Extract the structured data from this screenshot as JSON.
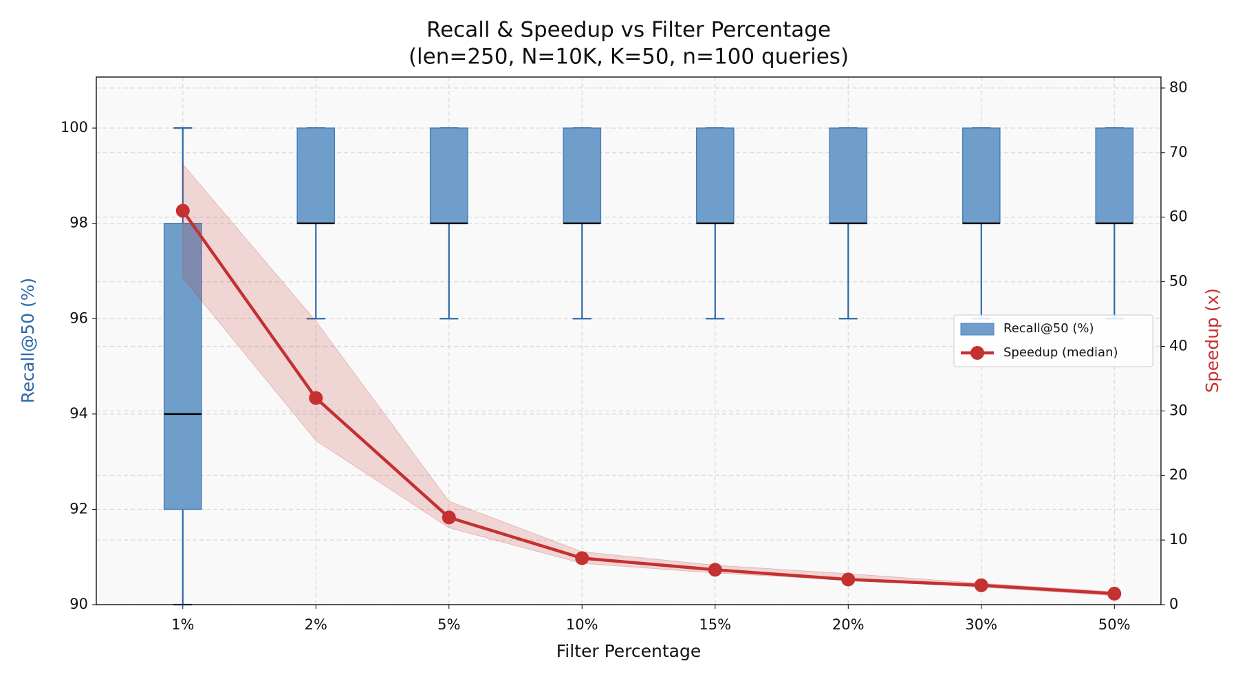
{
  "chart_data": {
    "type": "box",
    "title": "Recall & Speedup vs Filter Percentage",
    "subtitle": "(len=250, N=10K, K=50, n=100 queries)",
    "x_label": "Filter Percentage",
    "y_label": "Recall@50 (%)",
    "y2_label": "Speedup (x)",
    "categories": [
      "1%",
      "2%",
      "5%",
      "10%",
      "15%",
      "20%",
      "30%",
      "50%"
    ],
    "ylim": [
      90,
      101.07
    ],
    "yticks": [
      90,
      92,
      94,
      96,
      98,
      100
    ],
    "y2lim": [
      0,
      81.7
    ],
    "y2ticks": [
      0,
      10,
      20,
      30,
      40,
      50,
      60,
      70,
      80
    ],
    "grid": true,
    "legend": "right",
    "series": [
      {
        "name": "Recall@50 (%)",
        "color": "#6f9ecb",
        "edge": "#2e68a8",
        "low": [
          90,
          96,
          96,
          96,
          96,
          96,
          96,
          96
        ],
        "q1": [
          92,
          98,
          98,
          98,
          98,
          98,
          98,
          98
        ],
        "median": [
          94,
          98,
          98,
          98,
          98,
          98,
          98,
          98
        ],
        "q3": [
          98,
          100,
          100,
          100,
          100,
          100,
          100,
          100
        ],
        "high": [
          100,
          100,
          100,
          100,
          100,
          100,
          100,
          100
        ]
      },
      {
        "name": "Speedup (median)",
        "color": "#c53030",
        "axis": "y2",
        "values": [
          61,
          32,
          13.5,
          7.2,
          5.4,
          3.9,
          3.0,
          1.7
        ],
        "band_low": [
          50.6,
          25.4,
          11.9,
          6.4,
          4.9,
          3.8,
          2.7,
          1.4
        ],
        "band_high": [
          68.2,
          43.9,
          16,
          8.2,
          6.1,
          4.8,
          3.3,
          2.0
        ]
      }
    ]
  }
}
